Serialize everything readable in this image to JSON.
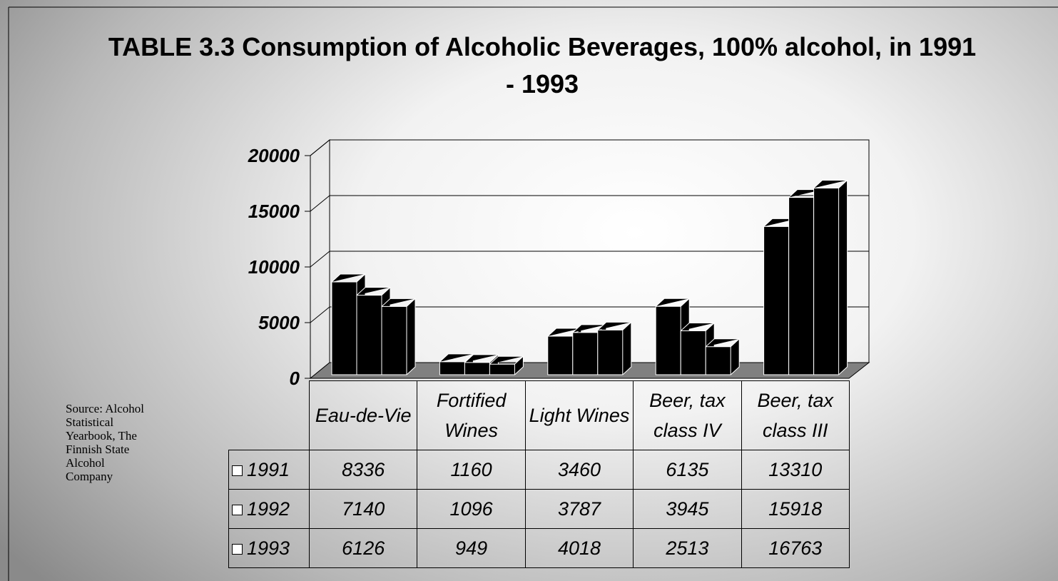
{
  "chart_data": {
    "type": "bar",
    "title": "TABLE 3.3 Consumption of Alcoholic Beverages, 100% alcohol, in 1991 - 1993",
    "categories": [
      "Eau-de-Vie",
      "Fortified Wines",
      "Light Wines",
      "Beer, tax class IV",
      "Beer, tax class III"
    ],
    "series": [
      {
        "name": "1991",
        "color": "#000000",
        "values": [
          8336,
          1160,
          3460,
          6135,
          13310
        ]
      },
      {
        "name": "1992",
        "color": "#000000",
        "values": [
          7140,
          1096,
          3787,
          3945,
          15918
        ]
      },
      {
        "name": "1993",
        "color": "#000000",
        "values": [
          6126,
          949,
          4018,
          2513,
          16763
        ]
      }
    ],
    "ylim": [
      0,
      20000
    ],
    "yticks": [
      0,
      5000,
      10000,
      15000,
      20000
    ],
    "grid": true,
    "annotation": "Source: Alcohol Statistical Yearbook, The Finnish State Alcohol Company"
  }
}
